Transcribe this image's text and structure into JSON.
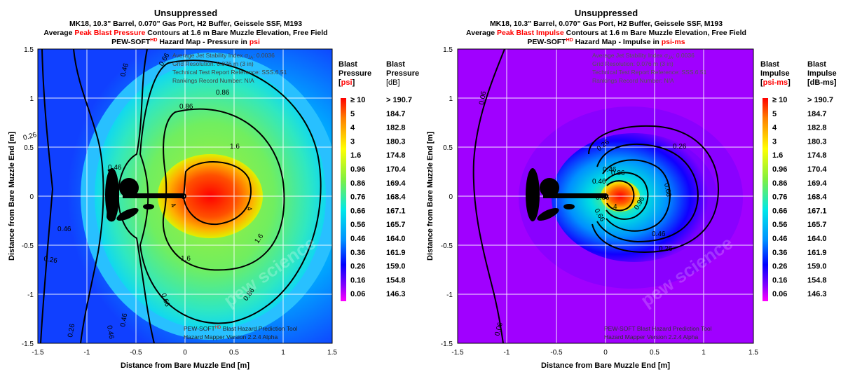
{
  "chart_data": [
    {
      "type": "heatmap",
      "panel": "pressure",
      "title": "Unsuppressed",
      "subtitle_line1": "MK18, 10.3\" Barrel, 0.070\" Gas Port, H2 Buffer, Geissele SSF, M193",
      "subtitle_line2": {
        "pre": "Average ",
        "highlight": "Peak Blast Pressure",
        "post": " Contours at 1.6 m Bare Muzzle Elevation, Free Field"
      },
      "subtitle_line3": {
        "pre": "PEW-SOFT",
        "sup": "HD",
        "mid": " Hazard Map - Pressure in ",
        "unit": "psi"
      },
      "xlabel": "Distance from Bare Muzzle End [m]",
      "ylabel": "Distance from Bare Muzzle End [m]",
      "xlim": [
        -1.5,
        1.5
      ],
      "ylim": [
        -1.5,
        1.5
      ],
      "xticks": [
        "-1.5",
        "-1",
        "-0.5",
        "0",
        "0.5",
        "1",
        "1.5"
      ],
      "yticks": [
        "1.5",
        "1",
        "0.5",
        "0",
        "-0.5",
        "-1",
        "-1.5"
      ],
      "info_lines": [
        "Average Jet Stability Index σ",
        "Grid Resolution: 0.076 m (3 in)",
        "Technical Test Report Reference: SSS.6.51",
        "Rankings Record Number: N/A"
      ],
      "info_sub": "JA",
      "info_value": ": 0.0036",
      "footer_line1": {
        "pre": "PEW-SOFT",
        "sup": "HD",
        "post": " Blast Hazard Prediction Tool"
      },
      "footer_line2": "Hazard Mapper Version 2.2.4 Alpha",
      "watermark": "pew science",
      "contour_labels": [
        "0.46",
        "0.66",
        "0.86",
        "1.6",
        "4",
        "1.6",
        "4",
        "1.6",
        "0.86",
        "0.66",
        "0.46",
        "0.26",
        "0.46",
        "0.26",
        "0.86",
        "0.46",
        "0.26",
        "0.46"
      ],
      "legend": {
        "header_left": [
          "Blast",
          "Pressure"
        ],
        "unit_left": "psi",
        "header_right": [
          "Blast",
          "Pressure",
          "[dB]"
        ],
        "levels": [
          "≥ 10",
          "5",
          "4",
          "3",
          "1.6",
          "0.96",
          "0.86",
          "0.76",
          "0.66",
          "0.56",
          "0.46",
          "0.36",
          "0.26",
          "0.16",
          "0.06"
        ],
        "db": [
          "> 190.7",
          "184.7",
          "182.8",
          "180.3",
          "174.8",
          "170.4",
          "169.4",
          "168.4",
          "167.1",
          "165.7",
          "164.0",
          "161.9",
          "159.0",
          "154.8",
          "146.3"
        ]
      }
    },
    {
      "type": "heatmap",
      "panel": "impulse",
      "title": "Unsuppressed",
      "subtitle_line1": "MK18, 10.3\" Barrel, 0.070\" Gas Port, H2 Buffer, Geissele SSF, M193",
      "subtitle_line2": {
        "pre": "Average ",
        "highlight": "Peak Blast Impulse",
        "post": " Contours at 1.6 m Bare Muzzle Elevation, Free Field"
      },
      "subtitle_line3": {
        "pre": "PEW-SOFT",
        "sup": "HD",
        "mid": " Hazard Map - Impulse in ",
        "unit": "psi-ms"
      },
      "xlabel": "Distance from Bare Muzzle End [m]",
      "ylabel": "Distance from Bare Muzzle End [m]",
      "xlim": [
        -1.5,
        1.5
      ],
      "ylim": [
        -1.5,
        1.5
      ],
      "xticks": [
        "-1.5",
        "-1",
        "-0.5",
        "0",
        "0.5",
        "1",
        "1.5"
      ],
      "yticks": [
        "1.5",
        "1",
        "0.5",
        "0",
        "-0.5",
        "-1",
        "-1.5"
      ],
      "info_lines": [
        "Average Jet Stability Index σ",
        "Grid Resolution: 0.076 m (3 in)",
        "Technical Test Report Reference: SSS.6.51",
        "Rankings Record Number: N/A"
      ],
      "info_sub": "JA",
      "info_value": ": 0.0036",
      "footer_line1": {
        "pre": "PEW-SOFT",
        "sup": "",
        "post": " Blast Hazard Prediction Tool"
      },
      "footer_line2": "Hazard Mapper Version 2.2.4 Alpha",
      "watermark": "pew science",
      "contour_labels": [
        "0.06",
        "0.26",
        "0.26",
        "0.46",
        "0.66",
        "0.86",
        "0.66",
        "0.46",
        "0.26",
        "0.46",
        "0.66",
        "4",
        "0.96",
        "0.06"
      ],
      "legend": {
        "header_left": [
          "Blast",
          "Impulse"
        ],
        "unit_left": "psi-ms",
        "header_right": [
          "Blast",
          "Impulse",
          "[dB-ms]"
        ],
        "levels": [
          "≥ 10",
          "5",
          "4",
          "3",
          "1.6",
          "0.96",
          "0.86",
          "0.76",
          "0.66",
          "0.56",
          "0.46",
          "0.36",
          "0.26",
          "0.16",
          "0.06"
        ],
        "db": [
          "> 190.7",
          "184.7",
          "182.8",
          "180.3",
          "174.8",
          "170.4",
          "169.4",
          "168.4",
          "167.1",
          "165.7",
          "164.0",
          "161.9",
          "159.0",
          "154.8",
          "146.3"
        ]
      }
    }
  ],
  "colors": {
    "scale": [
      "#ff00ff",
      "#8000ff",
      "#0000ff",
      "#0090ff",
      "#00e8e8",
      "#40e8a0",
      "#80f040",
      "#c8f000",
      "#ffff00",
      "#ffc000",
      "#ff8000",
      "#ff0000"
    ],
    "highlight": "#ff0000",
    "contour": "#000000",
    "grid": "#ffffff",
    "silhouette": "#000000"
  }
}
